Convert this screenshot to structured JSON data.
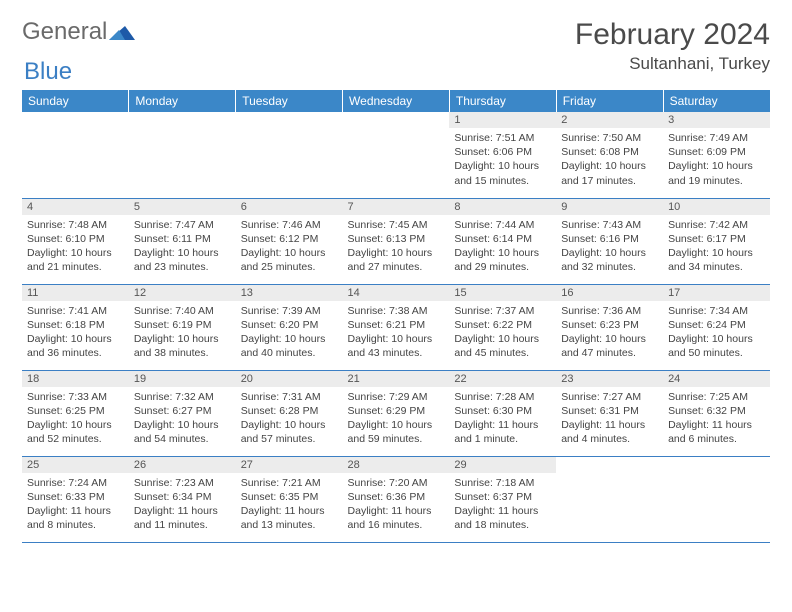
{
  "brand": {
    "word1": "General",
    "word2": "Blue"
  },
  "title": "February 2024",
  "location": "Sultanhani, Turkey",
  "colors": {
    "header_bg": "#3b87c8",
    "header_text": "#ffffff",
    "daynum_bg": "#ececec",
    "border": "#3b7fc4",
    "text": "#333333",
    "logo_gray": "#6a6a6a",
    "logo_blue": "#3b7fc4"
  },
  "weekdays": [
    "Sunday",
    "Monday",
    "Tuesday",
    "Wednesday",
    "Thursday",
    "Friday",
    "Saturday"
  ],
  "weeks": [
    [
      {
        "empty": true
      },
      {
        "empty": true
      },
      {
        "empty": true
      },
      {
        "empty": true
      },
      {
        "day": "1",
        "sunrise": "Sunrise: 7:51 AM",
        "sunset": "Sunset: 6:06 PM",
        "daylight": "Daylight: 10 hours and 15 minutes."
      },
      {
        "day": "2",
        "sunrise": "Sunrise: 7:50 AM",
        "sunset": "Sunset: 6:08 PM",
        "daylight": "Daylight: 10 hours and 17 minutes."
      },
      {
        "day": "3",
        "sunrise": "Sunrise: 7:49 AM",
        "sunset": "Sunset: 6:09 PM",
        "daylight": "Daylight: 10 hours and 19 minutes."
      }
    ],
    [
      {
        "day": "4",
        "sunrise": "Sunrise: 7:48 AM",
        "sunset": "Sunset: 6:10 PM",
        "daylight": "Daylight: 10 hours and 21 minutes."
      },
      {
        "day": "5",
        "sunrise": "Sunrise: 7:47 AM",
        "sunset": "Sunset: 6:11 PM",
        "daylight": "Daylight: 10 hours and 23 minutes."
      },
      {
        "day": "6",
        "sunrise": "Sunrise: 7:46 AM",
        "sunset": "Sunset: 6:12 PM",
        "daylight": "Daylight: 10 hours and 25 minutes."
      },
      {
        "day": "7",
        "sunrise": "Sunrise: 7:45 AM",
        "sunset": "Sunset: 6:13 PM",
        "daylight": "Daylight: 10 hours and 27 minutes."
      },
      {
        "day": "8",
        "sunrise": "Sunrise: 7:44 AM",
        "sunset": "Sunset: 6:14 PM",
        "daylight": "Daylight: 10 hours and 29 minutes."
      },
      {
        "day": "9",
        "sunrise": "Sunrise: 7:43 AM",
        "sunset": "Sunset: 6:16 PM",
        "daylight": "Daylight: 10 hours and 32 minutes."
      },
      {
        "day": "10",
        "sunrise": "Sunrise: 7:42 AM",
        "sunset": "Sunset: 6:17 PM",
        "daylight": "Daylight: 10 hours and 34 minutes."
      }
    ],
    [
      {
        "day": "11",
        "sunrise": "Sunrise: 7:41 AM",
        "sunset": "Sunset: 6:18 PM",
        "daylight": "Daylight: 10 hours and 36 minutes."
      },
      {
        "day": "12",
        "sunrise": "Sunrise: 7:40 AM",
        "sunset": "Sunset: 6:19 PM",
        "daylight": "Daylight: 10 hours and 38 minutes."
      },
      {
        "day": "13",
        "sunrise": "Sunrise: 7:39 AM",
        "sunset": "Sunset: 6:20 PM",
        "daylight": "Daylight: 10 hours and 40 minutes."
      },
      {
        "day": "14",
        "sunrise": "Sunrise: 7:38 AM",
        "sunset": "Sunset: 6:21 PM",
        "daylight": "Daylight: 10 hours and 43 minutes."
      },
      {
        "day": "15",
        "sunrise": "Sunrise: 7:37 AM",
        "sunset": "Sunset: 6:22 PM",
        "daylight": "Daylight: 10 hours and 45 minutes."
      },
      {
        "day": "16",
        "sunrise": "Sunrise: 7:36 AM",
        "sunset": "Sunset: 6:23 PM",
        "daylight": "Daylight: 10 hours and 47 minutes."
      },
      {
        "day": "17",
        "sunrise": "Sunrise: 7:34 AM",
        "sunset": "Sunset: 6:24 PM",
        "daylight": "Daylight: 10 hours and 50 minutes."
      }
    ],
    [
      {
        "day": "18",
        "sunrise": "Sunrise: 7:33 AM",
        "sunset": "Sunset: 6:25 PM",
        "daylight": "Daylight: 10 hours and 52 minutes."
      },
      {
        "day": "19",
        "sunrise": "Sunrise: 7:32 AM",
        "sunset": "Sunset: 6:27 PM",
        "daylight": "Daylight: 10 hours and 54 minutes."
      },
      {
        "day": "20",
        "sunrise": "Sunrise: 7:31 AM",
        "sunset": "Sunset: 6:28 PM",
        "daylight": "Daylight: 10 hours and 57 minutes."
      },
      {
        "day": "21",
        "sunrise": "Sunrise: 7:29 AM",
        "sunset": "Sunset: 6:29 PM",
        "daylight": "Daylight: 10 hours and 59 minutes."
      },
      {
        "day": "22",
        "sunrise": "Sunrise: 7:28 AM",
        "sunset": "Sunset: 6:30 PM",
        "daylight": "Daylight: 11 hours and 1 minute."
      },
      {
        "day": "23",
        "sunrise": "Sunrise: 7:27 AM",
        "sunset": "Sunset: 6:31 PM",
        "daylight": "Daylight: 11 hours and 4 minutes."
      },
      {
        "day": "24",
        "sunrise": "Sunrise: 7:25 AM",
        "sunset": "Sunset: 6:32 PM",
        "daylight": "Daylight: 11 hours and 6 minutes."
      }
    ],
    [
      {
        "day": "25",
        "sunrise": "Sunrise: 7:24 AM",
        "sunset": "Sunset: 6:33 PM",
        "daylight": "Daylight: 11 hours and 8 minutes."
      },
      {
        "day": "26",
        "sunrise": "Sunrise: 7:23 AM",
        "sunset": "Sunset: 6:34 PM",
        "daylight": "Daylight: 11 hours and 11 minutes."
      },
      {
        "day": "27",
        "sunrise": "Sunrise: 7:21 AM",
        "sunset": "Sunset: 6:35 PM",
        "daylight": "Daylight: 11 hours and 13 minutes."
      },
      {
        "day": "28",
        "sunrise": "Sunrise: 7:20 AM",
        "sunset": "Sunset: 6:36 PM",
        "daylight": "Daylight: 11 hours and 16 minutes."
      },
      {
        "day": "29",
        "sunrise": "Sunrise: 7:18 AM",
        "sunset": "Sunset: 6:37 PM",
        "daylight": "Daylight: 11 hours and 18 minutes."
      },
      {
        "empty": true
      },
      {
        "empty": true
      }
    ]
  ]
}
